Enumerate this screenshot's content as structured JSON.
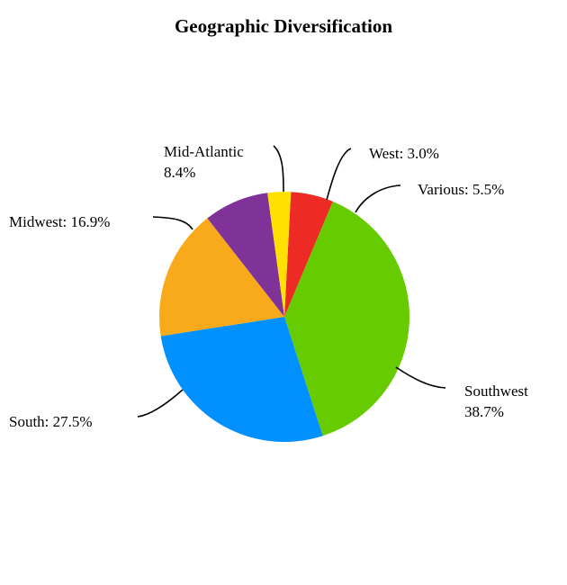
{
  "chart_data": {
    "type": "pie",
    "title": "Geographic Diversification",
    "start_angle_deg": -87,
    "direction": "clockwise",
    "slices": [
      {
        "label": "Various",
        "value": 5.5,
        "display": [
          "Various: 5.5%"
        ],
        "color": "#ee2a24"
      },
      {
        "label": "Southwest",
        "value": 38.7,
        "display": [
          "Southwest",
          "38.7%"
        ],
        "color": "#66cc00"
      },
      {
        "label": "South",
        "value": 27.5,
        "display": [
          "South: 27.5%"
        ],
        "color": "#0090ff"
      },
      {
        "label": "Midwest",
        "value": 16.9,
        "display": [
          "Midwest: 16.9%"
        ],
        "color": "#f9aa1b"
      },
      {
        "label": "Mid-Atlantic",
        "value": 8.4,
        "display": [
          "Mid-Atlantic",
          "8.4%"
        ],
        "color": "#7f3399"
      },
      {
        "label": "West",
        "value": 3.0,
        "display": [
          "West: 3.0%"
        ],
        "color": "#ffe000"
      }
    ]
  }
}
